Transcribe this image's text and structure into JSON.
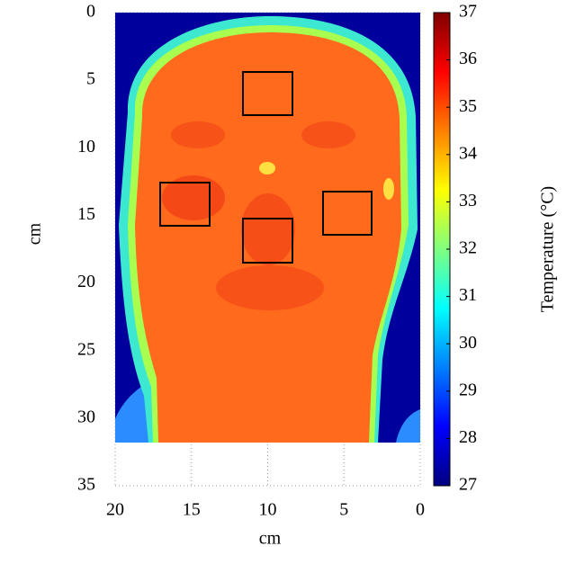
{
  "chart_data": {
    "type": "heatmap",
    "xlabel": "cm",
    "ylabel": "cm",
    "xlim": [
      20,
      0
    ],
    "xticks": [
      20,
      15,
      10,
      5,
      0
    ],
    "ylim": [
      0,
      35
    ],
    "yticks": [
      0,
      5,
      10,
      15,
      20,
      25,
      30,
      35
    ],
    "grid": true,
    "colorbar": {
      "label": "Temperature (°C)",
      "lim": [
        27,
        37
      ],
      "ticks": [
        27,
        28,
        29,
        30,
        31,
        32,
        33,
        34,
        35,
        36,
        37
      ],
      "colormap": "jet"
    }
  }
}
